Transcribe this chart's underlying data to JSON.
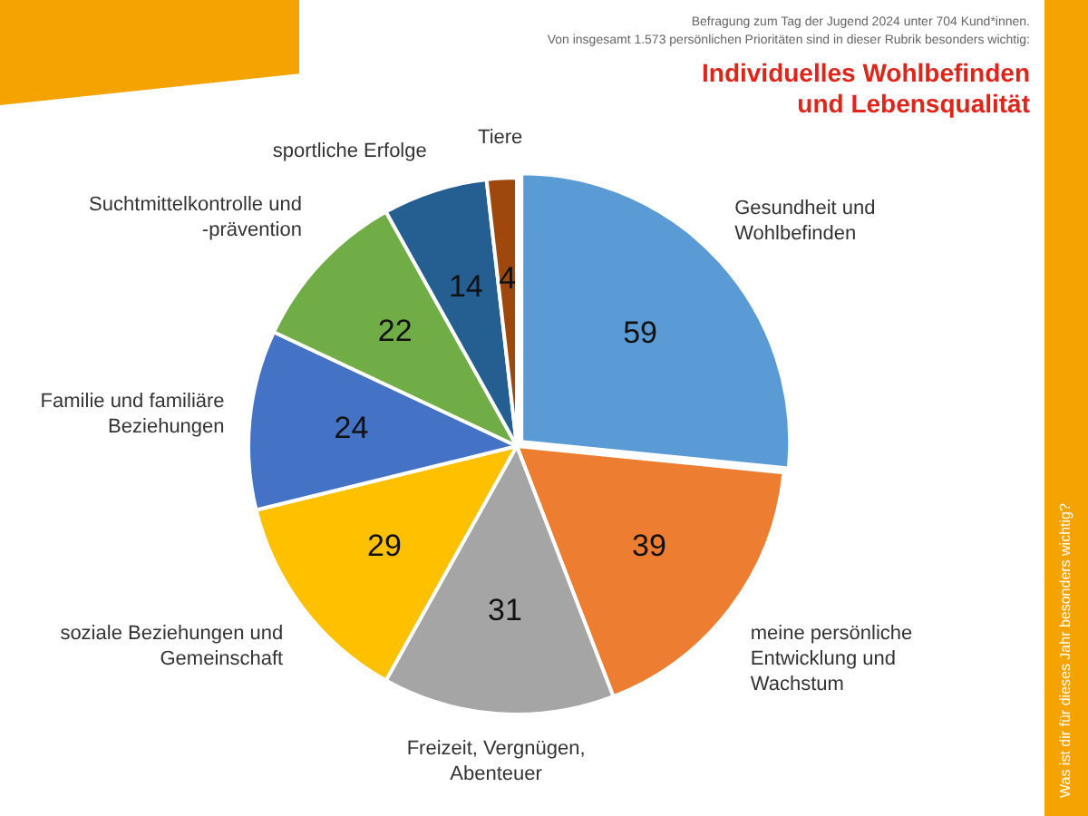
{
  "chart_data": {
    "type": "pie",
    "title": "Individuelles Wohlbefinden und Lebensqualität",
    "subtitle": "Befragung zum Tag der Jugend 2024 unter 704 Kund*innen.\nVon insgesamt 1.573 persönlichen Prioritäten sind in dieser Rubrik besonders wichtig:",
    "categories": [
      "Gesundheit und Wohlbefinden",
      "meine persönliche Entwicklung und Wachstum",
      "Freizeit, Vergnügen, Abenteuer",
      "soziale Beziehungen und Gemeinschaft",
      "Familie und familiäre Beziehungen",
      "Suchtmittelkontrolle und -prävention",
      "sportliche Erfolge",
      "Tiere"
    ],
    "values": [
      59,
      39,
      31,
      29,
      24,
      22,
      14,
      4
    ],
    "colors": [
      "#5b9bd5",
      "#ed7d31",
      "#a5a5a5",
      "#ffc000",
      "#4472c4",
      "#70ad47",
      "#255e91",
      "#9e480e"
    ],
    "data_labels": true,
    "legend": false,
    "annotations": [
      "Was ist dir für dieses Jahr besonders wichtig?"
    ]
  }
}
